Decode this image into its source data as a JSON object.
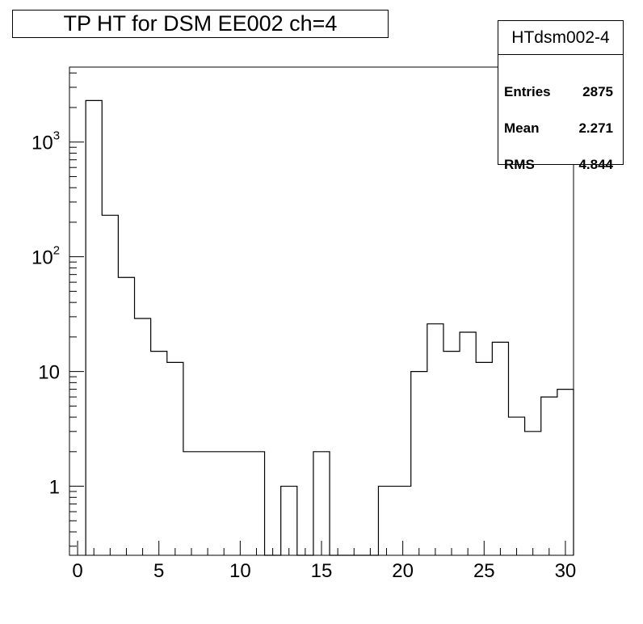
{
  "title": "TP HT for DSM EE002 ch=4",
  "stats": {
    "name": "HTdsm002-4",
    "rows": [
      {
        "label": "Entries",
        "value": "2875"
      },
      {
        "label": "Mean",
        "value": "2.271"
      },
      {
        "label": "RMS",
        "value": "4.844"
      }
    ]
  },
  "chart_data": {
    "type": "bar",
    "histogram": true,
    "bin_edges": [
      0.5,
      1.5,
      2.5,
      3.5,
      4.5,
      5.5,
      6.5,
      7.5,
      8.5,
      9.5,
      10.5,
      11.5,
      12.5,
      13.5,
      14.5,
      15.5,
      16.5,
      17.5,
      18.5,
      19.5,
      20.5,
      21.5,
      22.5,
      23.5,
      24.5,
      25.5,
      26.5,
      27.5,
      28.5,
      29.5,
      30.5
    ],
    "values": [
      2300,
      230,
      66,
      29,
      15,
      12,
      2,
      2,
      2,
      2,
      2,
      0,
      1,
      0,
      2,
      0,
      0,
      0,
      1,
      1,
      10,
      26,
      15,
      22,
      12,
      18,
      4,
      3,
      6,
      7
    ],
    "xlim": [
      -0.5,
      30.5
    ],
    "ylim": [
      0.25,
      4500
    ],
    "yscale": "log",
    "x_ticks": [
      0,
      5,
      10,
      15,
      20,
      25,
      30
    ],
    "x_tick_labels": [
      "0",
      "5",
      "10",
      "15",
      "20",
      "25",
      "30"
    ],
    "y_ticks": [
      1,
      10,
      100,
      1000
    ],
    "y_tick_labels": [
      {
        "base": "1",
        "exp": ""
      },
      {
        "base": "10",
        "exp": ""
      },
      {
        "base": "10",
        "exp": "2"
      },
      {
        "base": "10",
        "exp": "3"
      }
    ],
    "grid": false
  }
}
